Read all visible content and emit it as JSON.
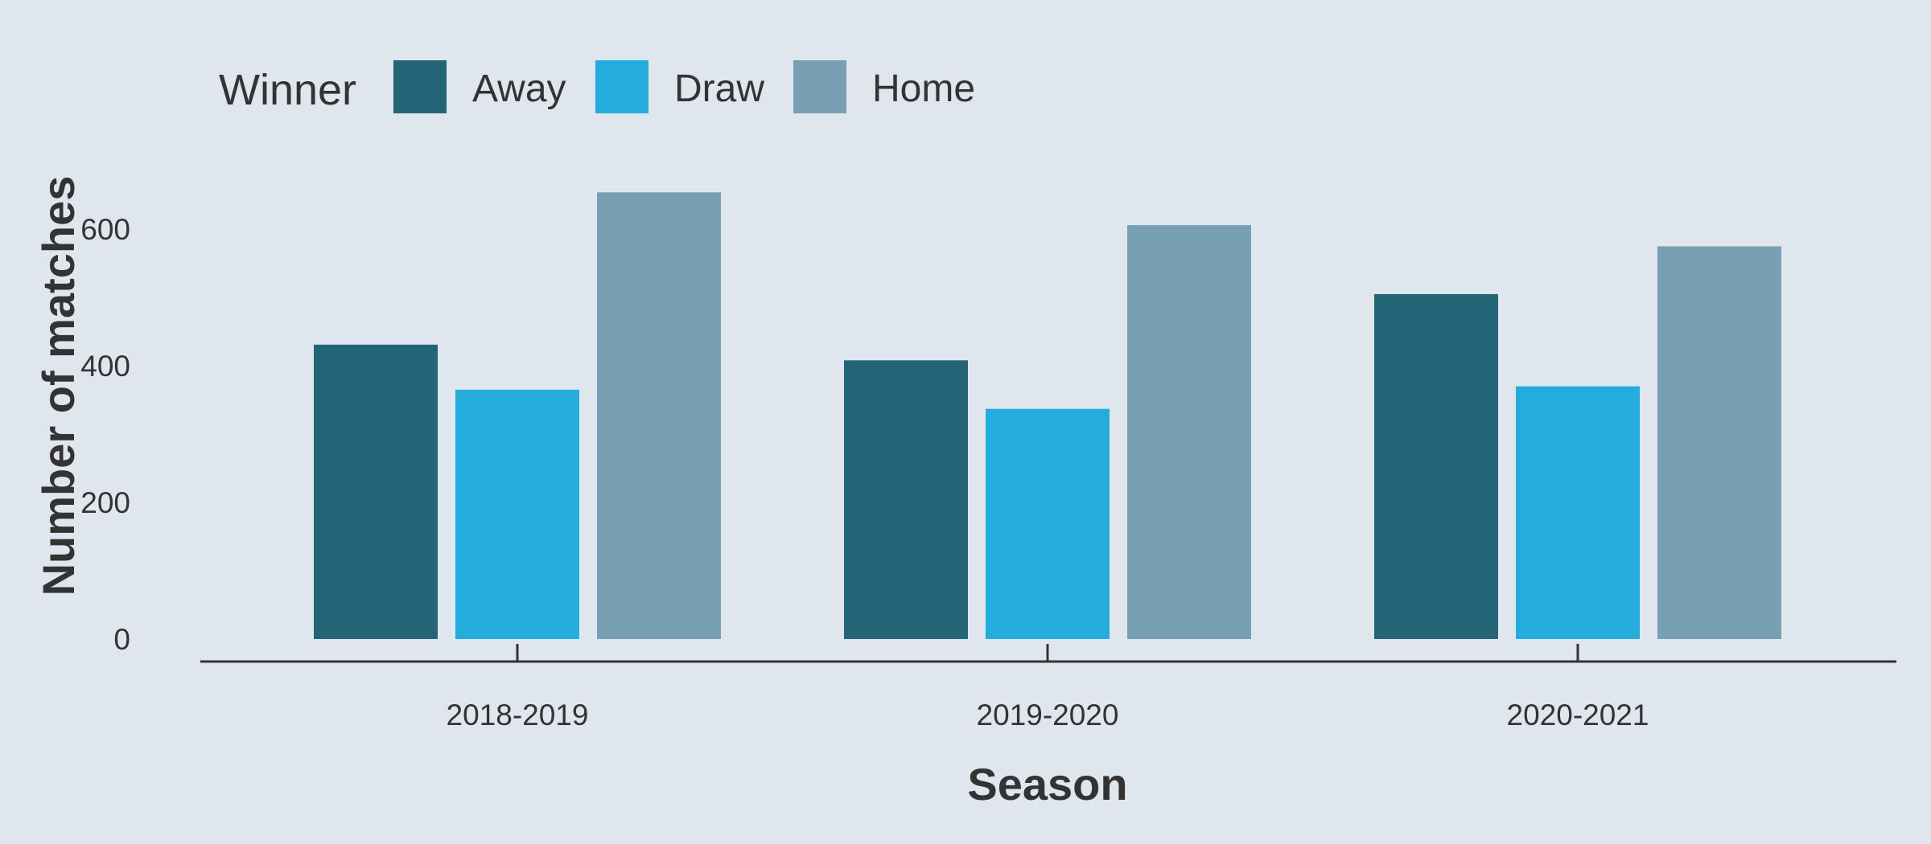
{
  "chart_data": {
    "type": "bar",
    "title": "",
    "xlabel": "Season",
    "ylabel": "Number of matches",
    "legend_title": "Winner",
    "legend_placement": "top-left",
    "grid": false,
    "categories": [
      "2018-2019",
      "2019-2020",
      "2020-2021"
    ],
    "series": [
      {
        "name": "Away",
        "values": [
          431,
          408,
          505
        ],
        "color": "#236477"
      },
      {
        "name": "Draw",
        "values": [
          365,
          337,
          370
        ],
        "color": "#23acdc"
      },
      {
        "name": "Home",
        "values": [
          654,
          606,
          575
        ],
        "color": "#79a0b2"
      }
    ],
    "yticks": [
      0,
      200,
      400,
      600
    ],
    "ylim": [
      0,
      680
    ]
  }
}
